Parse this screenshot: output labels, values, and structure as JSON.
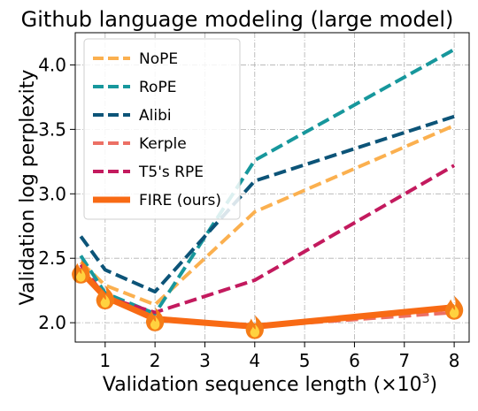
{
  "chart_data": {
    "type": "line",
    "title": "Github language modeling (large model)",
    "xlabel": "Validation sequence length (×10",
    "xlabel_sup": "3",
    "xlabel_end": ")",
    "ylabel": "Validation log perplexity",
    "xlim": [
      0.4,
      8.3
    ],
    "ylim": [
      1.85,
      4.25
    ],
    "xticks": [
      "1",
      "2",
      "3",
      "4",
      "5",
      "6",
      "7",
      "8"
    ],
    "yticks": [
      "2.0",
      "2.5",
      "3.0",
      "3.5",
      "4.0"
    ],
    "grid": true,
    "legend_position": "top-left",
    "x": [
      0.512,
      1.0,
      2.0,
      4.0,
      8.0
    ],
    "series": [
      {
        "name": "NoPE",
        "color": "#fbb04f",
        "style": "dashed",
        "values": [
          2.47,
          2.29,
          2.14,
          2.86,
          3.53
        ]
      },
      {
        "name": "RoPE",
        "color": "#17979c",
        "style": "dashed",
        "values": [
          2.52,
          2.23,
          2.07,
          3.26,
          4.12
        ]
      },
      {
        "name": "Alibi",
        "color": "#0c5478",
        "style": "dashed",
        "values": [
          2.67,
          2.41,
          2.24,
          3.1,
          3.6
        ]
      },
      {
        "name": "Kerple",
        "color": "#ec7065",
        "style": "dashed",
        "values": [
          2.43,
          2.21,
          2.04,
          1.97,
          2.08
        ]
      },
      {
        "name": "T5's RPE",
        "color": "#c31a5e",
        "style": "dashed",
        "values": [
          2.45,
          2.2,
          2.08,
          2.33,
          3.22
        ]
      },
      {
        "name": "FIRE (ours)",
        "color": "#f86a14",
        "style": "solid",
        "marker": "fire-icon",
        "values": [
          2.4,
          2.2,
          2.03,
          1.97,
          2.12
        ]
      }
    ]
  }
}
